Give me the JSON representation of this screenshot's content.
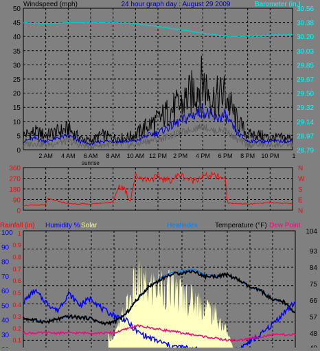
{
  "colors": {
    "bg": "#808080",
    "wind": "#000000",
    "wind_avg": "#0000cc",
    "barometer": "#00cccc",
    "direction": "#ff0000",
    "rain_axis": "#ff0000",
    "humidity": "#0000ff",
    "solar": "#ffffc0",
    "heatindex": "#0080ff",
    "temperature": "#000000",
    "dewpoint": "#ff0080",
    "grid": "#000000",
    "baro_text": "#00ffff",
    "dir_text": "#ff0000"
  },
  "chart_data": [
    {
      "type": "line",
      "title": "24 hour graph day : August 29 2009",
      "ylabel": "Windspeed (mph)",
      "y2label": "Barometer (in.)",
      "y_ticks": [
        "0",
        "5",
        "10",
        "15",
        "20",
        "25",
        "30",
        "35",
        "40",
        "45",
        "50"
      ],
      "y2_ticks": [
        "28.79",
        "28.97",
        "29.14",
        "29.32",
        "29.50",
        "29.67",
        "29.85",
        "30.03",
        "30.20",
        "30.38",
        "30.56"
      ],
      "x_ticks": [
        "2 AM",
        "4 AM",
        "6 AM",
        "8 AM",
        "10 AM",
        "12 PM",
        "2 PM",
        "4 PM",
        "6 PM",
        "8 PM",
        "10 PM"
      ],
      "x_annotation": "sunrise",
      "ylim": [
        0,
        50
      ],
      "y2lim": [
        28.79,
        30.56
      ],
      "series": [
        {
          "name": "Wind speed",
          "x": [
            0,
            1,
            2,
            3,
            4,
            5,
            6,
            7,
            8,
            9,
            10,
            11,
            12,
            13,
            14,
            15,
            16,
            17,
            18,
            19,
            20,
            21,
            22,
            23,
            24
          ],
          "values": [
            5,
            6,
            5,
            6,
            7,
            4,
            3,
            5,
            4,
            4,
            5,
            8,
            10,
            13,
            15,
            19,
            23,
            17,
            19,
            10,
            5,
            5,
            4,
            4,
            4
          ]
        },
        {
          "name": "Wind average",
          "x": [
            0,
            1,
            2,
            3,
            4,
            5,
            6,
            7,
            8,
            9,
            10,
            11,
            12,
            13,
            14,
            15,
            16,
            17,
            18,
            19,
            20,
            21,
            22,
            23,
            24
          ],
          "values": [
            3,
            4,
            3,
            4,
            5,
            3,
            2,
            3,
            3,
            3,
            3,
            5,
            6,
            8,
            10,
            12,
            14,
            11,
            12,
            6,
            3,
            3,
            3,
            3,
            3
          ]
        },
        {
          "name": "Barometer",
          "x": [
            0,
            2,
            4,
            6,
            8,
            10,
            12,
            14,
            16,
            18,
            20,
            22,
            24
          ],
          "values": [
            30.38,
            30.37,
            30.38,
            30.38,
            30.38,
            30.37,
            30.33,
            30.29,
            30.25,
            30.21,
            30.21,
            30.22,
            30.23
          ]
        }
      ]
    },
    {
      "type": "line",
      "y_ticks": [
        "0",
        "90",
        "180",
        "270",
        "360"
      ],
      "y2_ticks": [
        "N",
        "W",
        "S",
        "E",
        "N"
      ],
      "ylim": [
        0,
        360
      ],
      "series": [
        {
          "name": "Wind direction",
          "x": [
            0,
            2,
            2.1,
            4,
            6,
            8,
            8.5,
            9,
            9.5,
            10,
            11,
            12,
            13,
            14,
            15,
            16,
            17,
            18,
            18.2,
            20,
            22,
            24
          ],
          "values": [
            40,
            45,
            100,
            55,
            50,
            70,
            200,
            190,
            80,
            290,
            260,
            280,
            250,
            300,
            250,
            285,
            290,
            270,
            60,
            50,
            65,
            55
          ]
        }
      ]
    },
    {
      "type": "line",
      "legend": [
        "Rainfall (in)",
        "Humidity %",
        "Solar",
        "Heatindex",
        "Temperature (°F)",
        "Dew Point"
      ],
      "y_left1_ticks": [
        "0.1",
        "0.2",
        "0.3",
        "0.4",
        "0.5",
        "0.6",
        "0.7",
        "0.8",
        "0.9",
        "1"
      ],
      "y_left2_ticks": [
        "20",
        "30",
        "40",
        "50",
        "60",
        "70",
        "80",
        "90",
        "100"
      ],
      "y_right_ticks": [
        "40",
        "48",
        "57",
        "66",
        "75",
        "84",
        "93",
        "104"
      ],
      "ylim": [
        40,
        104
      ],
      "series": [
        {
          "name": "Temperature",
          "x": [
            0,
            2,
            4,
            6,
            7,
            8,
            9,
            10,
            11,
            12,
            13,
            14,
            15,
            16,
            17,
            18,
            19,
            20,
            21,
            22,
            23,
            24
          ],
          "values": [
            56,
            54,
            57,
            56,
            53,
            54,
            58,
            66,
            73,
            77,
            80,
            81,
            82,
            79,
            79,
            80,
            77,
            73,
            71,
            66,
            65,
            59
          ]
        },
        {
          "name": "Humidity",
          "x": [
            0,
            1,
            2,
            3,
            4,
            5,
            6,
            7,
            8,
            9,
            10,
            11,
            12,
            13,
            14,
            15,
            16,
            17,
            18,
            19,
            20,
            21,
            22,
            23,
            24
          ],
          "values": [
            52,
            60,
            52,
            46,
            58,
            50,
            55,
            47,
            43,
            40,
            32,
            28,
            25,
            22,
            21,
            20,
            18,
            18,
            18,
            20,
            25,
            30,
            37,
            45,
            52
          ]
        },
        {
          "name": "Dew Point",
          "x": [
            0,
            2,
            4,
            6,
            8,
            9,
            10,
            11,
            12,
            13,
            14,
            15,
            16,
            17,
            18,
            19,
            20,
            22,
            24
          ],
          "values": [
            48,
            48,
            48,
            48,
            48,
            50,
            52,
            51,
            50,
            49,
            48,
            47,
            46,
            45,
            44,
            44,
            45,
            47,
            47
          ]
        },
        {
          "name": "Solar",
          "x": [
            8,
            9,
            10,
            11,
            12,
            13,
            14,
            15,
            16,
            17,
            18,
            18.5
          ],
          "values": [
            0.1,
            0.35,
            0.62,
            0.55,
            0.6,
            0.55,
            0.5,
            0.45,
            0.4,
            0.3,
            0.15,
            0
          ]
        }
      ]
    }
  ]
}
